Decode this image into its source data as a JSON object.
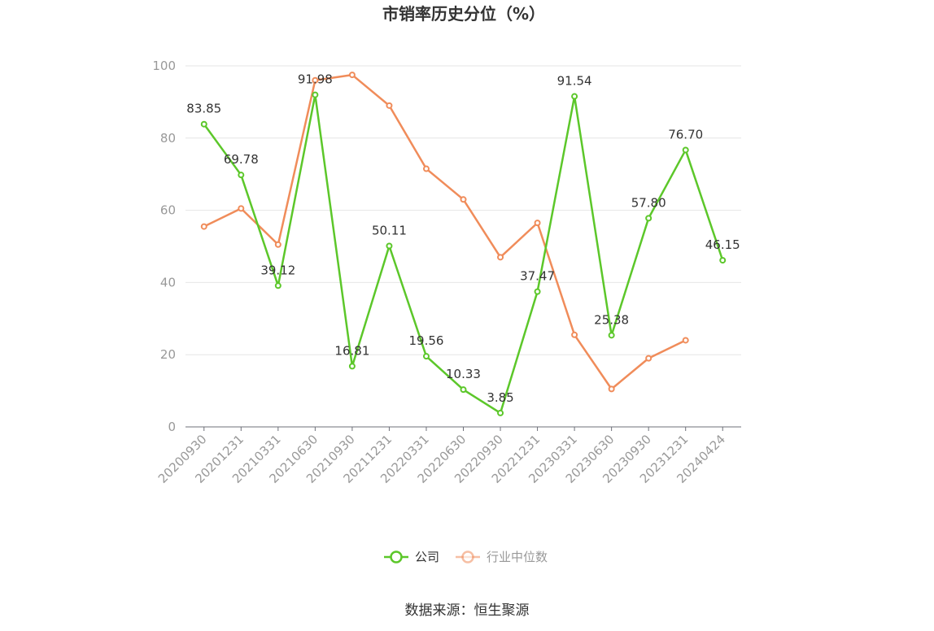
{
  "chart_data": {
    "type": "line",
    "title": "市销率历史分位（%）",
    "x": [
      "20200930",
      "20201231",
      "20210331",
      "20210630",
      "20210930",
      "20211231",
      "20220331",
      "20220630",
      "20220930",
      "20221231",
      "20230331",
      "20230630",
      "20230930",
      "20231231",
      "20240424"
    ],
    "ylim": [
      0,
      100
    ],
    "yticks": [
      0,
      20,
      40,
      60,
      80,
      100
    ],
    "grid": true,
    "legend_position": "bottom-center",
    "series": [
      {
        "name": "公司",
        "color": "#5cc72a",
        "values": [
          83.85,
          69.78,
          39.12,
          91.98,
          16.81,
          50.11,
          19.56,
          10.33,
          3.85,
          37.47,
          91.54,
          25.38,
          57.8,
          76.7,
          46.15
        ],
        "labels": [
          "83.85",
          "69.78",
          "39.12",
          "91.98",
          "16.81",
          "50.11",
          "19.56",
          "10.33",
          "3.85",
          "37.47",
          "91.54",
          "25.38",
          "57.80",
          "76.70",
          "46.15"
        ]
      },
      {
        "name": "行业中位数",
        "color": "#f08c5a",
        "values": [
          55.5,
          60.5,
          50.5,
          96.0,
          97.5,
          89.0,
          71.5,
          63.0,
          47.0,
          56.5,
          25.5,
          10.5,
          19.0,
          24.0,
          null
        ]
      }
    ]
  },
  "source": "数据来源：恒生聚源"
}
